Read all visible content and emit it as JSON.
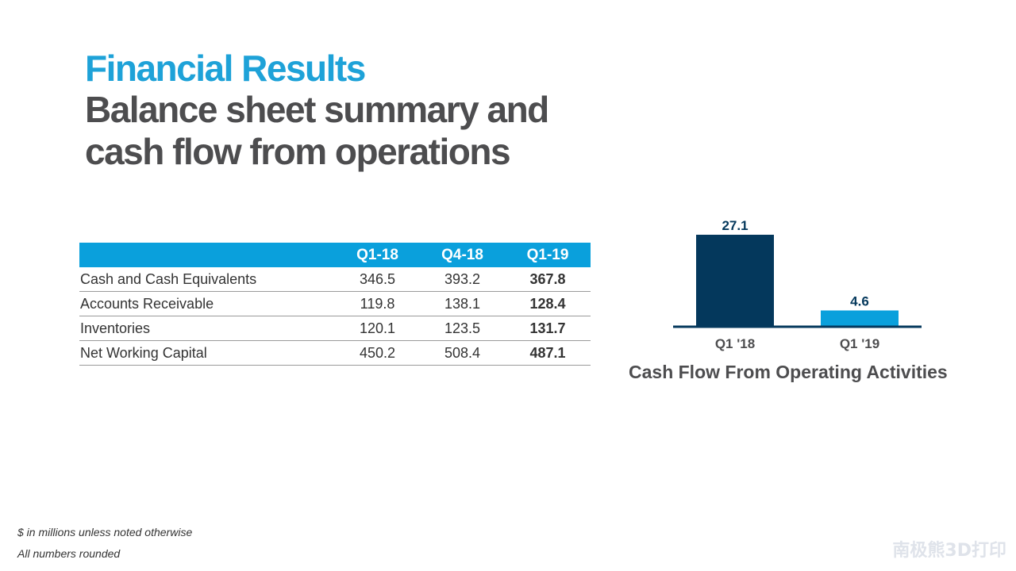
{
  "header": {
    "title": "Financial Results",
    "subtitle_line1": "Balance sheet summary and",
    "subtitle_line2": "cash flow from operations"
  },
  "table": {
    "columns": [
      "",
      "Q1-18",
      "Q4-18",
      "Q1-19"
    ],
    "rows": [
      {
        "label": "Cash and Cash Equivalents",
        "values": [
          "346.5",
          "393.2",
          "367.8"
        ]
      },
      {
        "label": "Accounts Receivable",
        "values": [
          "119.8",
          "138.1",
          "128.4"
        ]
      },
      {
        "label": "Inventories",
        "values": [
          "120.1",
          "123.5",
          "131.7"
        ]
      },
      {
        "label": "Net Working Capital",
        "values": [
          "450.2",
          "508.4",
          "487.1"
        ]
      }
    ]
  },
  "chart_data": {
    "type": "bar",
    "title": "Cash Flow From Operating Activities",
    "categories": [
      "Q1 '18",
      "Q1 '19"
    ],
    "values": [
      27.1,
      4.6
    ],
    "data_labels": [
      "27.1",
      "4.6"
    ],
    "colors": [
      "#04385c",
      "#0aa0dc"
    ],
    "axis_color": "#04385c",
    "ylim": [
      0,
      27.1
    ],
    "grid": false
  },
  "footnotes": {
    "note1": "$ in millions unless noted otherwise",
    "note2": "All numbers rounded"
  },
  "watermark": "南极熊3D打印"
}
